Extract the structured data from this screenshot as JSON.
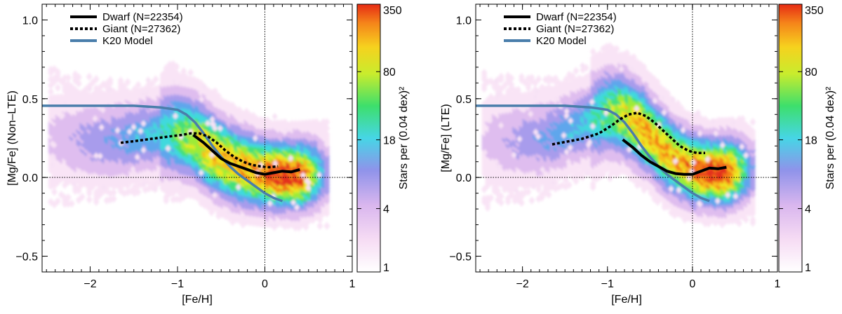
{
  "chart_data": [
    {
      "type": "density-scatter-with-lines",
      "panel": "left",
      "xlabel": "[Fe/H]",
      "ylabel": "[Mg/Fe] (Non–LTE)",
      "xlim": [
        -2.55,
        1.0
      ],
      "ylim": [
        -0.6,
        1.1
      ],
      "xticks": [
        -2,
        -1,
        0,
        1
      ],
      "xtick_labels": [
        "−2",
        "−1",
        "0",
        "1"
      ],
      "yticks": [
        -0.5,
        0.0,
        0.5,
        1.0
      ],
      "ytick_labels": [
        "−0.5",
        "0.0",
        "0.5",
        "1.0"
      ],
      "reference_lines": {
        "x": 0,
        "y": 0,
        "style": "dotted"
      },
      "legend": {
        "placement": "top-left",
        "entries": [
          {
            "label": "Dwarf (N=22354)",
            "style": "solid",
            "color": "#000000"
          },
          {
            "label": "Giant  (N=27362)",
            "style": "dotted",
            "color": "#000000"
          },
          {
            "label": "K20 Model",
            "style": "solid",
            "color": "#4a7eab"
          }
        ]
      },
      "series": [
        {
          "name": "Dwarf (N=22354)",
          "x": [
            -0.82,
            -0.7,
            -0.6,
            -0.5,
            -0.4,
            -0.3,
            -0.2,
            -0.1,
            0.0,
            0.1,
            0.2,
            0.3,
            0.4
          ],
          "y": [
            0.27,
            0.22,
            0.17,
            0.12,
            0.09,
            0.07,
            0.05,
            0.03,
            0.02,
            0.03,
            0.04,
            0.035,
            0.05
          ]
        },
        {
          "name": "Giant  (N=27362)",
          "x": [
            -1.65,
            -1.5,
            -1.3,
            -1.1,
            -0.95,
            -0.85,
            -0.75,
            -0.65,
            -0.55,
            -0.45,
            -0.35,
            -0.25,
            -0.15,
            -0.05,
            0.05,
            0.15
          ],
          "y": [
            0.22,
            0.23,
            0.245,
            0.26,
            0.27,
            0.28,
            0.28,
            0.26,
            0.22,
            0.17,
            0.13,
            0.1,
            0.08,
            0.07,
            0.065,
            0.07
          ]
        },
        {
          "name": "K20 Model",
          "x": [
            -2.55,
            -2.0,
            -1.5,
            -1.2,
            -1.0,
            -0.9,
            -0.8,
            -0.7,
            -0.6,
            -0.5,
            -0.4,
            -0.3,
            -0.2,
            -0.1,
            0.0,
            0.1,
            0.2
          ],
          "y": [
            0.455,
            0.455,
            0.455,
            0.445,
            0.43,
            0.4,
            0.35,
            0.28,
            0.2,
            0.13,
            0.07,
            0.02,
            -0.02,
            -0.06,
            -0.1,
            -0.13,
            -0.15
          ]
        }
      ],
      "density_ridge": {
        "x": [
          -2.4,
          -2.2,
          -2.0,
          -1.8,
          -1.6,
          -1.4,
          -1.2,
          -1.0,
          -0.8,
          -0.6,
          -0.4,
          -0.2,
          0.0,
          0.2,
          0.4,
          0.6
        ],
        "y": [
          0.26,
          0.25,
          0.24,
          0.24,
          0.25,
          0.27,
          0.29,
          0.29,
          0.25,
          0.17,
          0.1,
          0.06,
          0.03,
          0.02,
          0.02,
          0.03
        ]
      },
      "colorbar": {
        "label": "Stars per (0.04 dex)²",
        "scale": "log",
        "range": [
          1,
          350
        ],
        "ticks": [
          1,
          4,
          18,
          80,
          350
        ],
        "tick_labels": [
          "1",
          "4",
          "18",
          "80",
          "350"
        ]
      }
    },
    {
      "type": "density-scatter-with-lines",
      "panel": "right",
      "xlabel": "[Fe/H]",
      "ylabel": "[Mg/Fe] (LTE)",
      "xlim": [
        -2.55,
        1.0
      ],
      "ylim": [
        -0.6,
        1.1
      ],
      "xticks": [
        -2,
        -1,
        0,
        1
      ],
      "xtick_labels": [
        "−2",
        "−1",
        "0",
        "1"
      ],
      "yticks": [
        -0.5,
        0.0,
        0.5,
        1.0
      ],
      "ytick_labels": [
        "−0.5",
        "0.0",
        "0.5",
        "1.0"
      ],
      "reference_lines": {
        "x": 0,
        "y": 0,
        "style": "dotted"
      },
      "legend": {
        "placement": "top-left",
        "entries": [
          {
            "label": "Dwarf (N=22354)",
            "style": "solid",
            "color": "#000000"
          },
          {
            "label": "Giant  (N=27362)",
            "style": "dotted",
            "color": "#000000"
          },
          {
            "label": "K20 Model",
            "style": "solid",
            "color": "#4a7eab"
          }
        ]
      },
      "series": [
        {
          "name": "Dwarf (N=22354)",
          "x": [
            -0.82,
            -0.7,
            -0.6,
            -0.5,
            -0.4,
            -0.3,
            -0.2,
            -0.1,
            0.0,
            0.1,
            0.2,
            0.3,
            0.4
          ],
          "y": [
            0.24,
            0.19,
            0.14,
            0.1,
            0.07,
            0.04,
            0.025,
            0.02,
            0.02,
            0.04,
            0.06,
            0.055,
            0.065
          ]
        },
        {
          "name": "Giant  (N=27362)",
          "x": [
            -1.65,
            -1.5,
            -1.3,
            -1.1,
            -0.95,
            -0.85,
            -0.75,
            -0.65,
            -0.55,
            -0.45,
            -0.35,
            -0.25,
            -0.15,
            -0.05,
            0.05,
            0.15
          ],
          "y": [
            0.21,
            0.225,
            0.245,
            0.28,
            0.33,
            0.37,
            0.4,
            0.41,
            0.39,
            0.35,
            0.3,
            0.25,
            0.2,
            0.17,
            0.155,
            0.155
          ]
        },
        {
          "name": "K20 Model",
          "x": [
            -2.55,
            -2.0,
            -1.5,
            -1.2,
            -1.0,
            -0.9,
            -0.8,
            -0.7,
            -0.6,
            -0.5,
            -0.4,
            -0.3,
            -0.2,
            -0.1,
            0.0,
            0.1,
            0.2
          ],
          "y": [
            0.455,
            0.455,
            0.455,
            0.445,
            0.43,
            0.4,
            0.35,
            0.28,
            0.2,
            0.13,
            0.07,
            0.02,
            -0.02,
            -0.06,
            -0.1,
            -0.13,
            -0.15
          ]
        }
      ],
      "density_ridge": {
        "x": [
          -2.4,
          -2.2,
          -2.0,
          -1.8,
          -1.6,
          -1.4,
          -1.2,
          -1.0,
          -0.8,
          -0.6,
          -0.4,
          -0.2,
          0.0,
          0.2,
          0.4,
          0.6
        ],
        "y": [
          0.24,
          0.24,
          0.24,
          0.25,
          0.28,
          0.32,
          0.37,
          0.42,
          0.41,
          0.33,
          0.22,
          0.12,
          0.06,
          0.04,
          0.04,
          0.05
        ]
      },
      "colorbar": {
        "label": "Stars per (0.04 dex)²",
        "scale": "log",
        "range": [
          1,
          350
        ],
        "ticks": [
          1,
          4,
          18,
          80,
          350
        ],
        "tick_labels": [
          "1",
          "4",
          "18",
          "80",
          "350"
        ]
      }
    }
  ]
}
